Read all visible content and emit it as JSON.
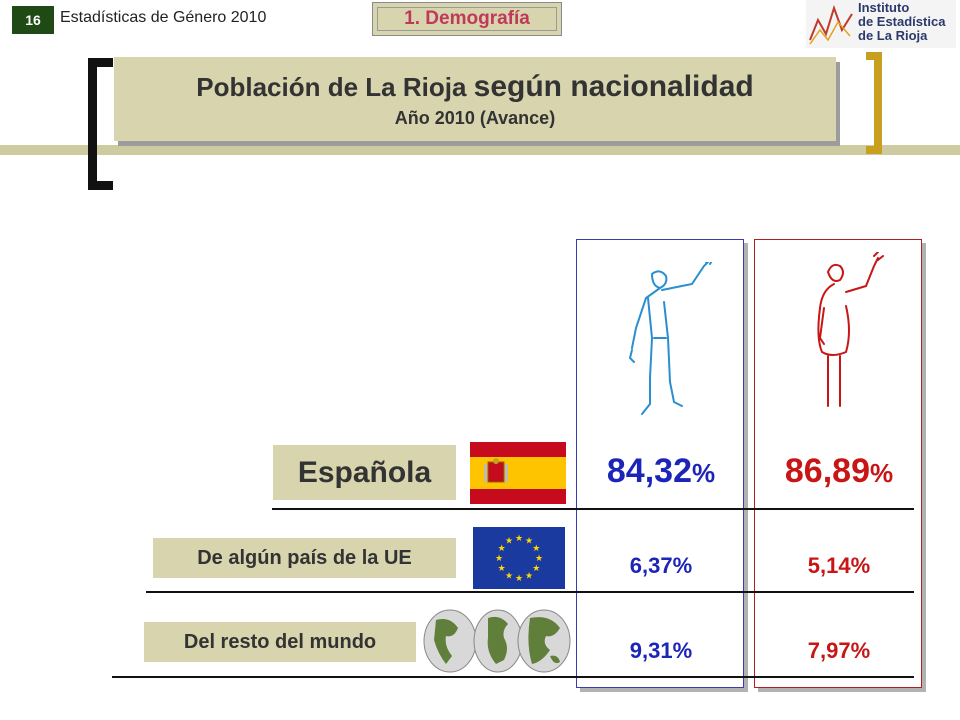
{
  "header": {
    "slide_number": "16",
    "series_title": "Estadísticas de Género 2010",
    "section_tab": "1. Demografía",
    "logo_lines": [
      "Instituto",
      "de Estadística",
      "de La Rioja"
    ]
  },
  "title": {
    "main_part1": "Población de La Rioja ",
    "main_part2": "según nacionalidad",
    "subtitle": "Año 2010 (Avance)"
  },
  "columns": {
    "male_icon": "man-waving-icon",
    "female_icon": "woman-waving-icon"
  },
  "rows": [
    {
      "label": "Española",
      "icon": "spain-flag-icon",
      "male_num": "84,32",
      "male_pct": "%",
      "female_num": "86,89",
      "female_pct": "%"
    },
    {
      "label": "De algún país de la UE",
      "icon": "eu-flag-icon",
      "male": "6,37%",
      "female": "5,14%"
    },
    {
      "label": "Del resto del mundo",
      "icon": "world-map-icon",
      "male": "9,31%",
      "female": "7,97%"
    }
  ],
  "colors": {
    "male": "#1d25b8",
    "female": "#c81616",
    "label_bg": "#d7d4ae",
    "accent_gold": "#c8a020"
  }
}
